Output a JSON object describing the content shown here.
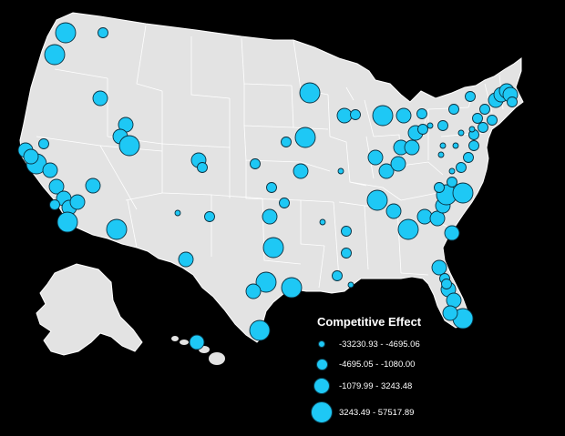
{
  "map": {
    "background": "#000000",
    "land_color": "#e3e3e3",
    "border_color": "#ffffff",
    "marker_color": "#1ec8f5",
    "marker_stroke": "#0a3040"
  },
  "legend": {
    "title": "Competitive Effect",
    "classes": [
      {
        "label": "-33230.93 - -4695.06",
        "size": 1
      },
      {
        "label": "-4695.05 - -1080.00",
        "size": 2
      },
      {
        "label": "-1079.99 - 3243.48",
        "size": 3
      },
      {
        "label": "3243.49 - 57517.89",
        "size": 4
      }
    ]
  },
  "chart_data": {
    "type": "proportional-symbol-map",
    "title": "Competitive Effect",
    "symbol_classes": [
      "-33230.93 - -4695.06",
      "-4695.05 - -1080.00",
      "-1079.99 - 3243.48",
      "3243.49 - 57517.89"
    ]
  }
}
